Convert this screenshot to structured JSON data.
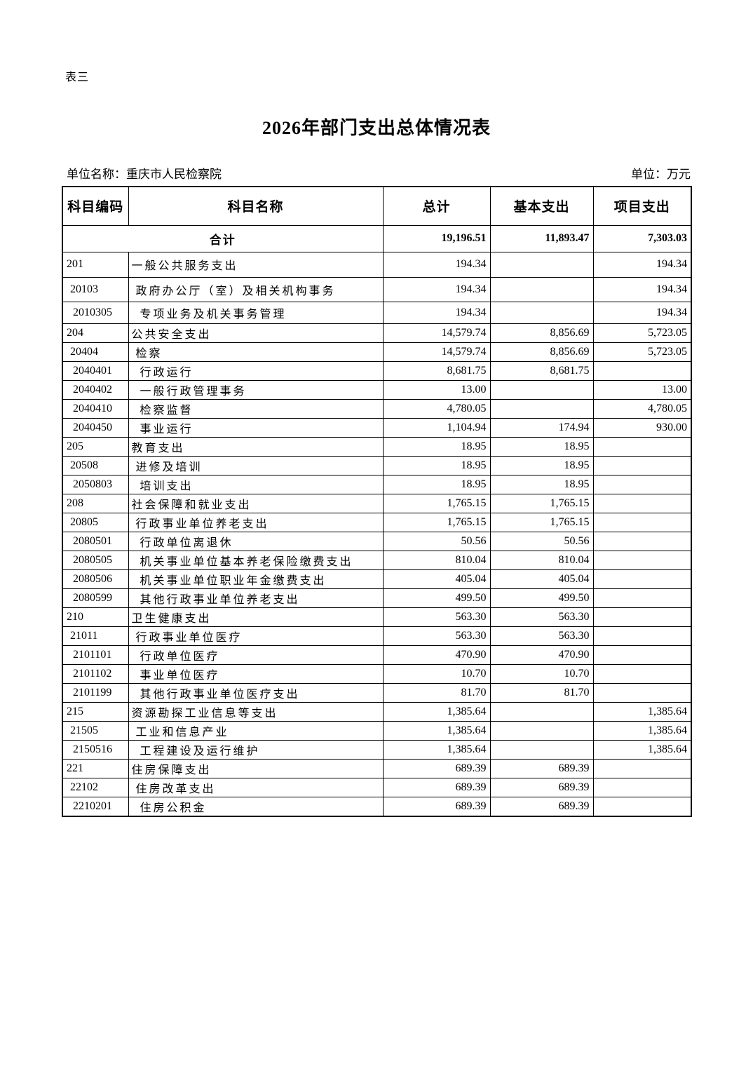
{
  "page": {
    "table_label": "表三",
    "title": "2026年部门支出总体情况表",
    "unit_name_label": "单位名称：",
    "unit_name": "重庆市人民检察院",
    "unit_label": "单位：",
    "unit": "万元"
  },
  "table": {
    "columns": [
      "科目编码",
      "科目名称",
      "总计",
      "基本支出",
      "项目支出"
    ],
    "total_row": {
      "label": "合计",
      "total": "19,196.51",
      "basic": "11,893.47",
      "project": "7,303.03"
    },
    "rows": [
      {
        "code": "201",
        "name": "一般公共服务支出",
        "total": "194.34",
        "basic": "",
        "project": "194.34"
      },
      {
        "code": "20103",
        "name": "政府办公厅（室）及相关机构事务",
        "total": "194.34",
        "basic": "",
        "project": "194.34"
      },
      {
        "code": "2010305",
        "name": "专项业务及机关事务管理",
        "total": "194.34",
        "basic": "",
        "project": "194.34"
      },
      {
        "code": "204",
        "name": "公共安全支出",
        "total": "14,579.74",
        "basic": "8,856.69",
        "project": "5,723.05"
      },
      {
        "code": "20404",
        "name": "检察",
        "total": "14,579.74",
        "basic": "8,856.69",
        "project": "5,723.05"
      },
      {
        "code": "2040401",
        "name": "行政运行",
        "total": "8,681.75",
        "basic": "8,681.75",
        "project": ""
      },
      {
        "code": "2040402",
        "name": "一般行政管理事务",
        "total": "13.00",
        "basic": "",
        "project": "13.00"
      },
      {
        "code": "2040410",
        "name": "检察监督",
        "total": "4,780.05",
        "basic": "",
        "project": "4,780.05"
      },
      {
        "code": "2040450",
        "name": "事业运行",
        "total": "1,104.94",
        "basic": "174.94",
        "project": "930.00"
      },
      {
        "code": "205",
        "name": "教育支出",
        "total": "18.95",
        "basic": "18.95",
        "project": ""
      },
      {
        "code": "20508",
        "name": "进修及培训",
        "total": "18.95",
        "basic": "18.95",
        "project": ""
      },
      {
        "code": "2050803",
        "name": "培训支出",
        "total": "18.95",
        "basic": "18.95",
        "project": ""
      },
      {
        "code": "208",
        "name": "社会保障和就业支出",
        "total": "1,765.15",
        "basic": "1,765.15",
        "project": ""
      },
      {
        "code": "20805",
        "name": "行政事业单位养老支出",
        "total": "1,765.15",
        "basic": "1,765.15",
        "project": ""
      },
      {
        "code": "2080501",
        "name": "行政单位离退休",
        "total": "50.56",
        "basic": "50.56",
        "project": ""
      },
      {
        "code": "2080505",
        "name": "机关事业单位基本养老保险缴费支出",
        "total": "810.04",
        "basic": "810.04",
        "project": ""
      },
      {
        "code": "2080506",
        "name": "机关事业单位职业年金缴费支出",
        "total": "405.04",
        "basic": "405.04",
        "project": ""
      },
      {
        "code": "2080599",
        "name": "其他行政事业单位养老支出",
        "total": "499.50",
        "basic": "499.50",
        "project": ""
      },
      {
        "code": "210",
        "name": "卫生健康支出",
        "total": "563.30",
        "basic": "563.30",
        "project": ""
      },
      {
        "code": "21011",
        "name": "行政事业单位医疗",
        "total": "563.30",
        "basic": "563.30",
        "project": ""
      },
      {
        "code": "2101101",
        "name": "行政单位医疗",
        "total": "470.90",
        "basic": "470.90",
        "project": ""
      },
      {
        "code": "2101102",
        "name": "事业单位医疗",
        "total": "10.70",
        "basic": "10.70",
        "project": ""
      },
      {
        "code": "2101199",
        "name": "其他行政事业单位医疗支出",
        "total": "81.70",
        "basic": "81.70",
        "project": ""
      },
      {
        "code": "215",
        "name": "资源勘探工业信息等支出",
        "total": "1,385.64",
        "basic": "",
        "project": "1,385.64"
      },
      {
        "code": "21505",
        "name": "工业和信息产业",
        "total": "1,385.64",
        "basic": "",
        "project": "1,385.64"
      },
      {
        "code": "2150516",
        "name": "工程建设及运行维护",
        "total": "1,385.64",
        "basic": "",
        "project": "1,385.64"
      },
      {
        "code": "221",
        "name": "住房保障支出",
        "total": "689.39",
        "basic": "689.39",
        "project": ""
      },
      {
        "code": "22102",
        "name": "住房改革支出",
        "total": "689.39",
        "basic": "689.39",
        "project": ""
      },
      {
        "code": "2210201",
        "name": "住房公积金",
        "total": "689.39",
        "basic": "689.39",
        "project": ""
      }
    ]
  }
}
